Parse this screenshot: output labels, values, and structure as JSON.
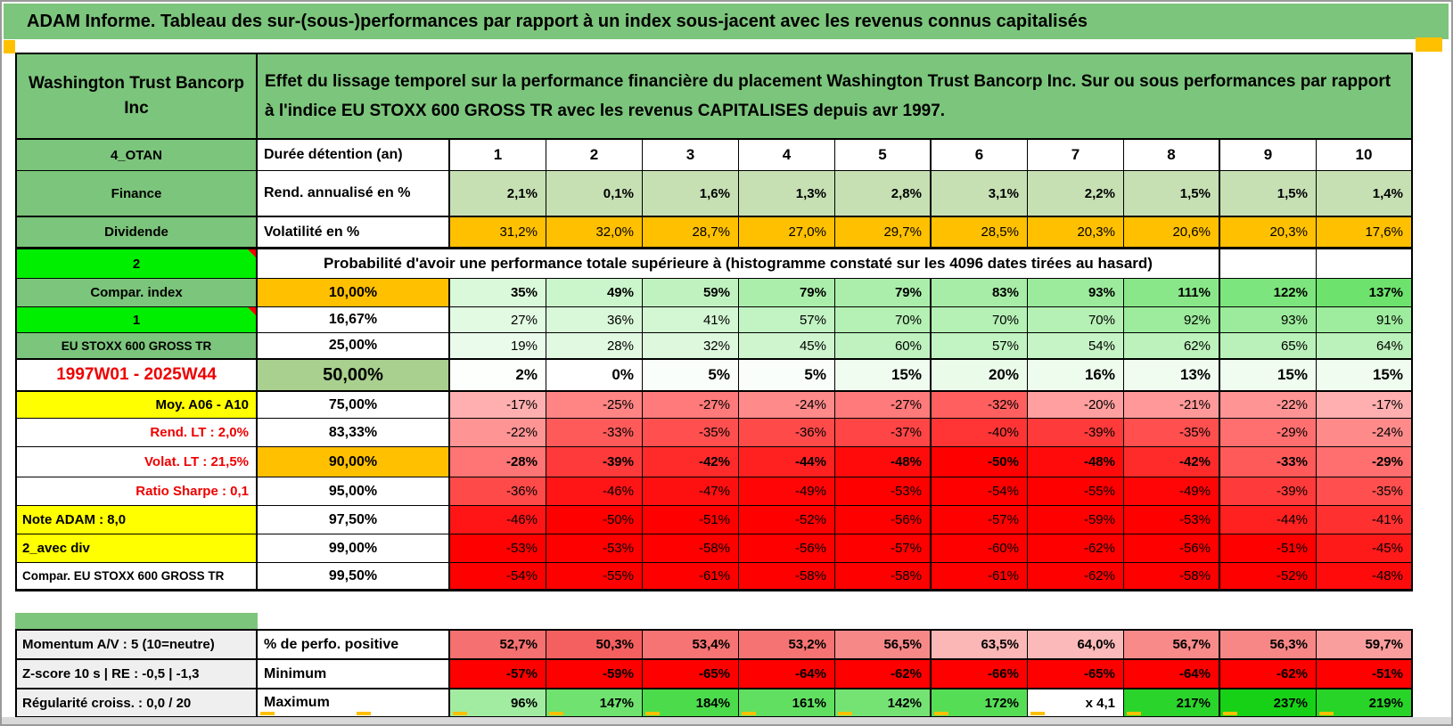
{
  "title": "ADAM Informe. Tableau des sur-(sous-)performances par rapport à un index sous-jacent avec les revenus connus capitalisés",
  "header": {
    "company": "Washington Trust Bancorp Inc",
    "description": "Effet du lissage temporel sur la performance financière du placement Washington Trust Bancorp Inc. Sur ou sous performances par rapport à l'indice EU STOXX 600 GROSS TR avec les revenus CAPITALISES depuis avr 1997."
  },
  "colors": {
    "title_green": "#7CC57C",
    "bright_green": "#00EE00",
    "olive_green": "#A9D08E",
    "light_green": "#C6E0B4",
    "orange": "#FFC000",
    "yellow": "#FFFF00",
    "red": "#FF0000",
    "label_gray": "#EFEFEF",
    "red_text": "#EE0000"
  },
  "table": {
    "rows": [
      {
        "id": "otan",
        "a": {
          "text": "4_OTAN",
          "bg": "green"
        },
        "b": {
          "text": "Durée détention (an)",
          "bold": true,
          "align": "left"
        },
        "kind": "cols",
        "bold": true,
        "values": [
          "1",
          "2",
          "3",
          "4",
          "5",
          "6",
          "7",
          "8",
          "9",
          "10"
        ]
      },
      {
        "id": "finance",
        "a": {
          "text": "Finance",
          "bg": "green"
        },
        "b": {
          "text": "Rend. annualisé en %",
          "bold": true,
          "align": "left"
        },
        "kind": "flat",
        "flatbg": "#C6E0B4",
        "bold": true,
        "values": [
          "2,1%",
          "0,1%",
          "1,6%",
          "1,3%",
          "2,8%",
          "3,1%",
          "2,2%",
          "1,5%",
          "1,5%",
          "1,4%"
        ]
      },
      {
        "id": "dividende",
        "a": {
          "text": "Dividende",
          "bg": "green"
        },
        "b": {
          "text": "Volatilité en %",
          "bold": true,
          "align": "left"
        },
        "kind": "flat",
        "flatbg": "#FFC000",
        "bold": false,
        "values": [
          "31,2%",
          "32,0%",
          "28,7%",
          "27,0%",
          "29,7%",
          "28,5%",
          "20,3%",
          "20,6%",
          "20,3%",
          "17,6%"
        ]
      },
      {
        "id": "proba",
        "a": {
          "text": "2",
          "bg": "bright",
          "marker": true
        },
        "kind": "span",
        "spanCols": 8,
        "trailing": 2,
        "span_text": "Probabilité d'avoir une performance totale supérieure à (histogramme constaté sur les 4096 dates tirées au hasard)"
      },
      {
        "id": "p10",
        "a": {
          "text": "Compar. index",
          "bg": "green"
        },
        "b": {
          "text": "10,00%",
          "bg": "#FFC000",
          "bold": true
        },
        "kind": "green",
        "bold": true,
        "values": [
          "35%",
          "49%",
          "59%",
          "79%",
          "79%",
          "83%",
          "93%",
          "111%",
          "122%",
          "137%"
        ]
      },
      {
        "id": "p16",
        "a": {
          "text": "1",
          "bg": "bright",
          "marker": true
        },
        "b": {
          "text": "16,67%"
        },
        "kind": "green",
        "values": [
          "27%",
          "36%",
          "41%",
          "57%",
          "70%",
          "70%",
          "70%",
          "92%",
          "93%",
          "91%"
        ]
      },
      {
        "id": "p25",
        "a": {
          "text": "EU STOXX 600 GROSS TR",
          "bg": "green",
          "small": true
        },
        "b": {
          "text": "25,00%"
        },
        "kind": "green",
        "values": [
          "19%",
          "28%",
          "32%",
          "45%",
          "60%",
          "57%",
          "54%",
          "62%",
          "65%",
          "64%"
        ]
      },
      {
        "id": "p50",
        "a": {
          "text": "1997W01 - 2025W44",
          "color": "red",
          "big": true
        },
        "b": {
          "text": "50,00%",
          "bg": "#A9D08E",
          "bold": true,
          "big": true
        },
        "kind": "green",
        "bold": true,
        "big": true,
        "values": [
          "2%",
          "0%",
          "5%",
          "5%",
          "15%",
          "20%",
          "16%",
          "13%",
          "15%",
          "15%"
        ]
      },
      {
        "id": "p75",
        "a": {
          "text": "Moy. A06 - A10",
          "bg": "yellow",
          "align": "right"
        },
        "b": {
          "text": "75,00%"
        },
        "kind": "neg",
        "values": [
          "-17%",
          "-25%",
          "-27%",
          "-24%",
          "-27%",
          "-32%",
          "-20%",
          "-21%",
          "-22%",
          "-17%"
        ]
      },
      {
        "id": "p83",
        "a": {
          "text": "Rend. LT :   2,0%",
          "color": "red",
          "align": "right"
        },
        "b": {
          "text": "83,33%"
        },
        "kind": "neg",
        "values": [
          "-22%",
          "-33%",
          "-35%",
          "-36%",
          "-37%",
          "-40%",
          "-39%",
          "-35%",
          "-29%",
          "-24%"
        ]
      },
      {
        "id": "p90",
        "a": {
          "text": "Volat. LT :   21,5%",
          "color": "red",
          "align": "right"
        },
        "b": {
          "text": "90,00%",
          "bg": "#FFC000",
          "bold": true
        },
        "kind": "neg",
        "bold": true,
        "values": [
          "-28%",
          "-39%",
          "-42%",
          "-44%",
          "-48%",
          "-50%",
          "-48%",
          "-42%",
          "-33%",
          "-29%"
        ]
      },
      {
        "id": "p95",
        "a": {
          "text": "Ratio Sharpe :   0,1",
          "color": "red",
          "align": "right"
        },
        "b": {
          "text": "95,00%"
        },
        "kind": "neg",
        "values": [
          "-36%",
          "-46%",
          "-47%",
          "-49%",
          "-53%",
          "-54%",
          "-55%",
          "-49%",
          "-39%",
          "-35%"
        ]
      },
      {
        "id": "p975",
        "a": {
          "text": "Note ADAM : 8,0",
          "bg": "yellow",
          "align": "left"
        },
        "b": {
          "text": "97,50%"
        },
        "kind": "neg",
        "values": [
          "-46%",
          "-50%",
          "-51%",
          "-52%",
          "-56%",
          "-57%",
          "-59%",
          "-53%",
          "-44%",
          "-41%"
        ]
      },
      {
        "id": "p99",
        "a": {
          "text": "2_avec div",
          "bg": "yellow",
          "align": "left"
        },
        "b": {
          "text": "99,00%"
        },
        "kind": "neg",
        "values": [
          "-53%",
          "-53%",
          "-58%",
          "-56%",
          "-57%",
          "-60%",
          "-62%",
          "-56%",
          "-51%",
          "-45%"
        ]
      },
      {
        "id": "p995",
        "a": {
          "text": "Compar. EU STOXX 600 GROSS TR",
          "align": "left",
          "small": true
        },
        "b": {
          "text": "99,50%"
        },
        "kind": "neg",
        "values": [
          "-54%",
          "-55%",
          "-61%",
          "-58%",
          "-58%",
          "-61%",
          "-62%",
          "-58%",
          "-52%",
          "-48%"
        ]
      }
    ],
    "bottom_rows": [
      {
        "id": "momentum",
        "a": {
          "text": "Momentum A/V : 5 (10=neutre)",
          "bg": "gray",
          "align": "left"
        },
        "b": {
          "text": "% de perfo. positive",
          "bold": true,
          "align": "left"
        },
        "kind": "pink",
        "bold": true,
        "values": [
          "52,7%",
          "50,3%",
          "53,4%",
          "53,2%",
          "56,5%",
          "63,5%",
          "64,0%",
          "56,7%",
          "56,3%",
          "59,7%"
        ]
      },
      {
        "id": "zscore",
        "a": {
          "text": "Z-score 10 s | RE : -0,5 | -1,3",
          "bg": "gray",
          "align": "left"
        },
        "b": {
          "text": "Minimum",
          "bold": true,
          "align": "left"
        },
        "kind": "minred",
        "bold": true,
        "values": [
          "-57%",
          "-59%",
          "-65%",
          "-64%",
          "-62%",
          "-66%",
          "-65%",
          "-64%",
          "-62%",
          "-51%"
        ]
      },
      {
        "id": "regularite",
        "a": {
          "text": "Régularité croiss. : 0,0 / 20",
          "bg": "gray",
          "align": "left"
        },
        "b": {
          "text": "Maximum",
          "bold": true,
          "align": "left"
        },
        "kind": "max",
        "bold": true,
        "values": [
          "96%",
          "147%",
          "184%",
          "161%",
          "142%",
          "172%",
          "x 4,1",
          "217%",
          "237%",
          "219%"
        ]
      }
    ]
  }
}
